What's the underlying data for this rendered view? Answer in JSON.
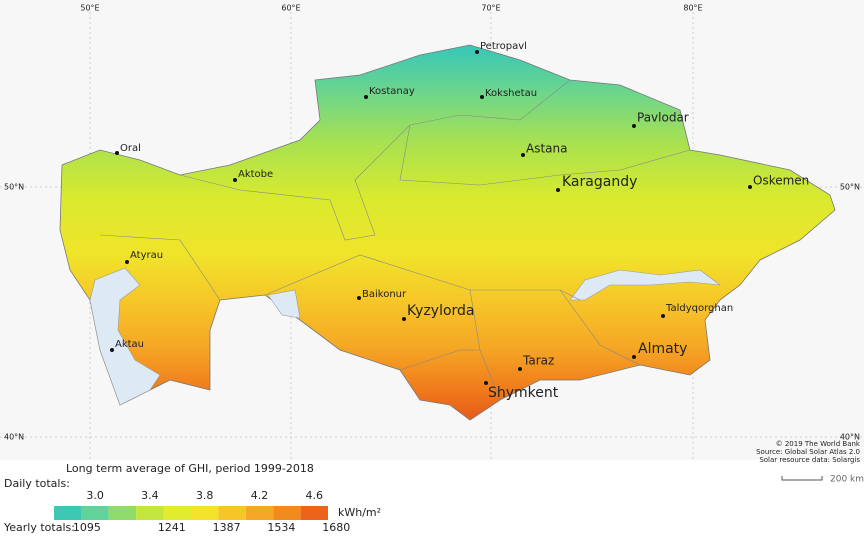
{
  "map": {
    "graticule": {
      "longitude": [
        "50°E",
        "60°E",
        "70°E",
        "80°E"
      ],
      "latitude_left": [
        "50°N",
        "40°N"
      ],
      "latitude_right": [
        "50°N",
        "40°N"
      ]
    },
    "cities": [
      "Petropavl",
      "Kostanay",
      "Kokshetau",
      "Pavlodar",
      "Oral",
      "Astana",
      "Aktobe",
      "Karagandy",
      "Oskemen",
      "Atyrau",
      "Baikonur",
      "Kyzylorda",
      "Taldyqorghan",
      "Aktau",
      "Almaty",
      "Taraz",
      "Shymkent"
    ],
    "credits": [
      "© 2019 The World Bank",
      "Source: Global Solar Atlas 2.0",
      "Solar resource data: Solargis"
    ],
    "scale_bar": "200 km"
  },
  "legend": {
    "title": "Long term average of GHI, period 1999-2018",
    "daily_label": "Daily totals:",
    "daily": [
      "3.0",
      "3.4",
      "3.8",
      "4.2",
      "4.6"
    ],
    "yearly_label": "Yearly totals:",
    "yearly": [
      "1095",
      "1241",
      "1387",
      "1534",
      "1680"
    ],
    "unit": "kWh/m²"
  }
}
